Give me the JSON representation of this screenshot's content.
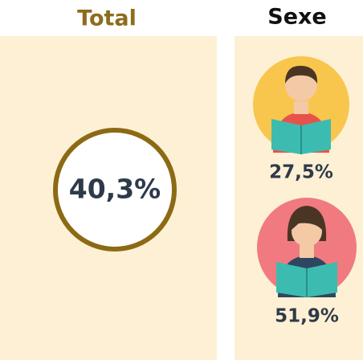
{
  "total": {
    "title": "Total",
    "value": "40,3%"
  },
  "sexe": {
    "title": "Sexe",
    "groups": [
      {
        "value": "27,5%"
      },
      {
        "value": "51,9%"
      }
    ]
  }
}
